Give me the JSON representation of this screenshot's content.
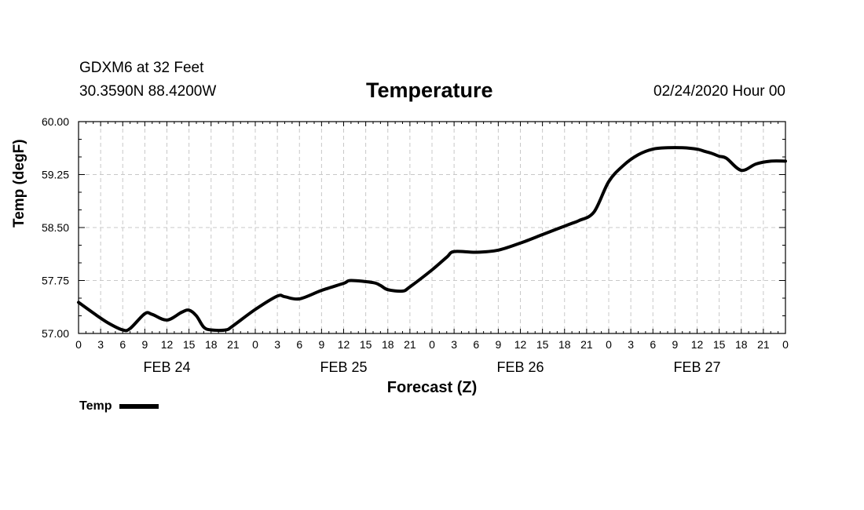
{
  "chart_data": {
    "type": "line",
    "station": "GDXM6 at 32 Feet",
    "coordinates": "30.3590N 88.4200W",
    "title": "Temperature",
    "run_time": "02/24/2020 Hour 00",
    "ylabel": "Temp (degF)",
    "xlabel": "Forecast (Z)",
    "ylim": [
      57.0,
      60.0
    ],
    "yticks": [
      "57.00",
      "57.75",
      "58.50",
      "59.25",
      "60.00"
    ],
    "xlim_hours": [
      0,
      96
    ],
    "x_tick_labels": [
      "0",
      "3",
      "6",
      "9",
      "12",
      "15",
      "18",
      "21",
      "0",
      "3",
      "6",
      "9",
      "12",
      "15",
      "18",
      "21",
      "0",
      "3",
      "6",
      "9",
      "12",
      "15",
      "18",
      "21",
      "0",
      "3",
      "6",
      "9",
      "12",
      "15",
      "18",
      "21",
      "0"
    ],
    "day_labels": [
      {
        "label": "FEB 24",
        "hour": 12
      },
      {
        "label": "FEB 25",
        "hour": 36
      },
      {
        "label": "FEB 26",
        "hour": 60
      },
      {
        "label": "FEB 27",
        "hour": 84
      }
    ],
    "grid": true,
    "legend": [
      {
        "name": "Temp",
        "color": "#000000"
      }
    ],
    "series": [
      {
        "name": "Temp",
        "x": [
          0,
          2,
          4,
          6,
          7,
          9,
          10,
          12,
          14,
          15,
          16,
          17,
          18,
          20,
          21,
          24,
          27,
          28,
          30,
          33,
          36,
          37,
          40,
          41,
          42,
          44,
          45,
          48,
          50,
          51,
          54,
          57,
          60,
          63,
          65,
          66,
          67,
          68,
          70,
          72,
          74,
          76,
          78,
          80,
          82,
          84,
          85,
          86,
          87,
          88,
          90,
          92,
          94,
          96
        ],
        "values": [
          57.44,
          57.29,
          57.15,
          57.05,
          57.07,
          57.28,
          57.27,
          57.19,
          57.3,
          57.33,
          57.25,
          57.09,
          57.05,
          57.05,
          57.11,
          57.34,
          57.53,
          57.52,
          57.49,
          57.61,
          57.71,
          57.75,
          57.72,
          57.68,
          57.62,
          57.6,
          57.66,
          57.9,
          58.08,
          58.16,
          58.15,
          58.18,
          58.28,
          58.4,
          58.48,
          58.52,
          58.56,
          58.6,
          58.72,
          59.15,
          59.38,
          59.53,
          59.61,
          59.63,
          59.63,
          59.61,
          59.58,
          59.55,
          59.51,
          59.48,
          59.31,
          59.4,
          59.44,
          59.44
        ]
      }
    ]
  }
}
